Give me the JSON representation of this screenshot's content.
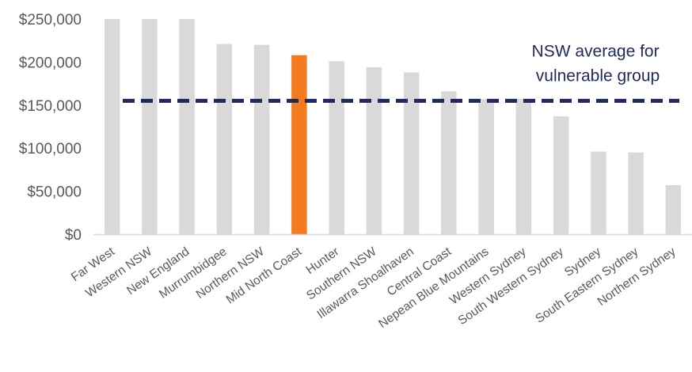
{
  "chart_data": {
    "type": "bar",
    "title": "",
    "xlabel": "",
    "ylabel": "",
    "ylim": [
      0,
      250000
    ],
    "yticks": [
      0,
      50000,
      100000,
      150000,
      200000,
      250000
    ],
    "ytick_labels": [
      "$0",
      "$50,000",
      "$100,000",
      "$150,000",
      "$200,000",
      "$250,000"
    ],
    "grid": false,
    "categories": [
      "Far West",
      "Western NSW",
      "New England",
      "Murrumbidgee",
      "Northern NSW",
      "Mid North Coast",
      "Hunter",
      "Southern NSW",
      "Illawarra Shoalhaven",
      "Central Coast",
      "Nepean Blue Mountains",
      "Western Sydney",
      "South Western Sydney",
      "Sydney",
      "South Eastern Sydney",
      "Northern Sydney"
    ],
    "values": [
      250000,
      250000,
      250000,
      221000,
      220000,
      208000,
      201000,
      194000,
      188000,
      166000,
      157000,
      157000,
      137000,
      96000,
      95000,
      57000
    ],
    "highlight_category": "Mid North Coast",
    "colors": {
      "bar": "#d9d9d9",
      "highlight": "#f47b20",
      "reference": "#1f2a5c",
      "text": "#595959",
      "axis": "#d9d9d9"
    },
    "reference_line": {
      "value": 155000,
      "style": "dashed",
      "label_lines": [
        "NSW average for",
        "vulnerable group"
      ]
    }
  }
}
